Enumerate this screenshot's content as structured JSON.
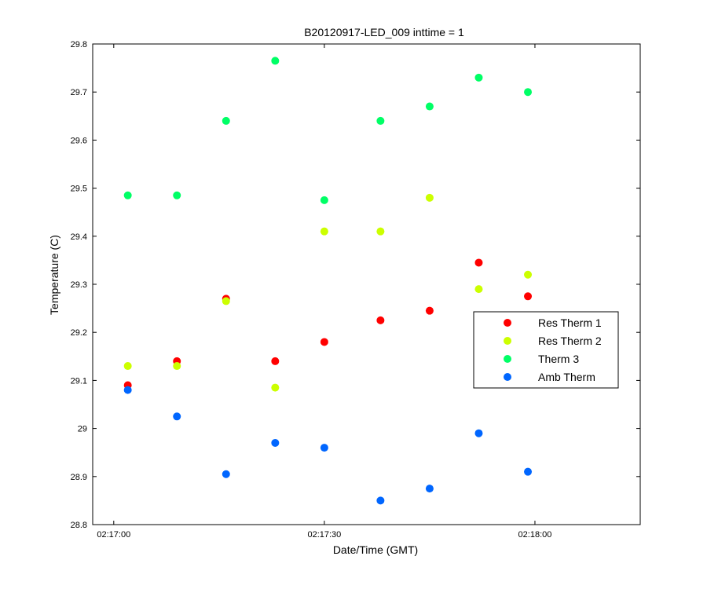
{
  "chart_data": {
    "type": "scatter",
    "title": "B20120917-LED_009 inttime = 1",
    "xlabel": "Date/Time (GMT)",
    "ylabel": "Temperature (C)",
    "xlim": [
      "02:16:57",
      "02:18:15"
    ],
    "ylim": [
      28.8,
      29.8
    ],
    "x_ticks": [
      "02:17:00",
      "02:17:30",
      "02:18:00"
    ],
    "y_ticks": [
      "28.8",
      "28.9",
      "29",
      "29.1",
      "29.2",
      "29.3",
      "29.4",
      "29.5",
      "29.6",
      "29.7",
      "29.8"
    ],
    "x": [
      "02:17:02",
      "02:17:09",
      "02:17:16",
      "02:17:23",
      "02:17:30",
      "02:17:38",
      "02:17:45",
      "02:17:52",
      "02:17:59"
    ],
    "series": [
      {
        "name": "Res Therm 1",
        "color": "#ff0000",
        "values": [
          29.09,
          29.14,
          29.27,
          29.14,
          29.18,
          29.225,
          29.245,
          29.345,
          29.275
        ]
      },
      {
        "name": "Res Therm 2",
        "color": "#ccff00",
        "values": [
          29.13,
          29.13,
          29.265,
          29.085,
          29.41,
          29.41,
          29.48,
          29.29,
          29.32
        ]
      },
      {
        "name": "Therm 3",
        "color": "#00ff66",
        "values": [
          29.485,
          29.485,
          29.64,
          29.765,
          29.475,
          29.64,
          29.67,
          29.73,
          29.7
        ]
      },
      {
        "name": "Amb Therm",
        "color": "#0066ff",
        "values": [
          29.08,
          29.025,
          28.905,
          28.97,
          28.96,
          28.85,
          28.875,
          28.99,
          28.91
        ]
      }
    ],
    "legend_position": "right",
    "grid": false
  }
}
